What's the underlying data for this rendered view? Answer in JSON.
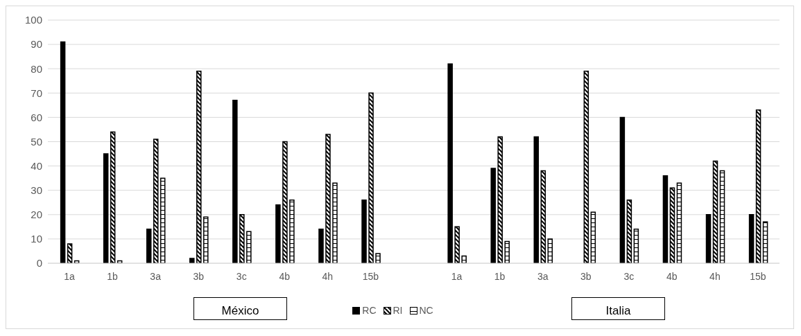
{
  "chart_data": {
    "type": "bar",
    "categories": [
      "1a",
      "1b",
      "3a",
      "3b",
      "3c",
      "4b",
      "4h",
      "15b",
      null,
      "1a",
      "1b",
      "3a",
      "3b",
      "3c",
      "4b",
      "4h",
      "15b"
    ],
    "series": [
      {
        "name": "RC",
        "color": "#000000",
        "values": [
          91,
          45,
          14,
          2,
          67,
          24,
          14,
          26,
          null,
          82,
          39,
          52,
          0,
          60,
          36,
          20,
          20
        ]
      },
      {
        "name": "RI",
        "color": "#000000",
        "values": [
          8,
          54,
          51,
          79,
          20,
          50,
          53,
          70,
          null,
          15,
          52,
          38,
          79,
          26,
          31,
          42,
          63
        ]
      },
      {
        "name": "NC",
        "color": "#000000",
        "values": [
          1,
          1,
          35,
          19,
          13,
          26,
          33,
          4,
          null,
          3,
          9,
          10,
          21,
          14,
          33,
          38,
          17
        ]
      }
    ],
    "ylim": [
      0,
      100
    ],
    "yticks": [
      0,
      10,
      20,
      30,
      40,
      50,
      60,
      70,
      80,
      90,
      100
    ],
    "grid": "y",
    "legend": "bottom",
    "annotations": [
      "México",
      "Italia"
    ]
  }
}
